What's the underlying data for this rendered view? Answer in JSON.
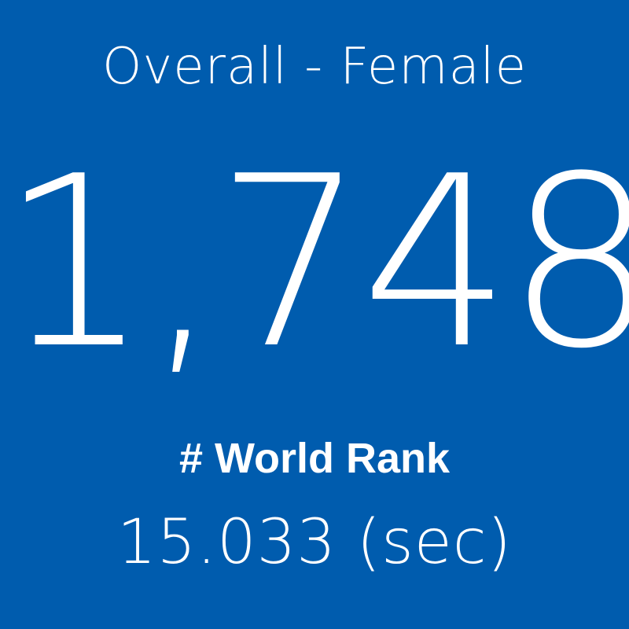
{
  "tile": {
    "background_color": "#005cae",
    "text_color": "#ffffff",
    "category": "Overall - Female",
    "rank_value": "1,748",
    "rank_label": "# World Rank",
    "time": "15.033 (sec)"
  }
}
